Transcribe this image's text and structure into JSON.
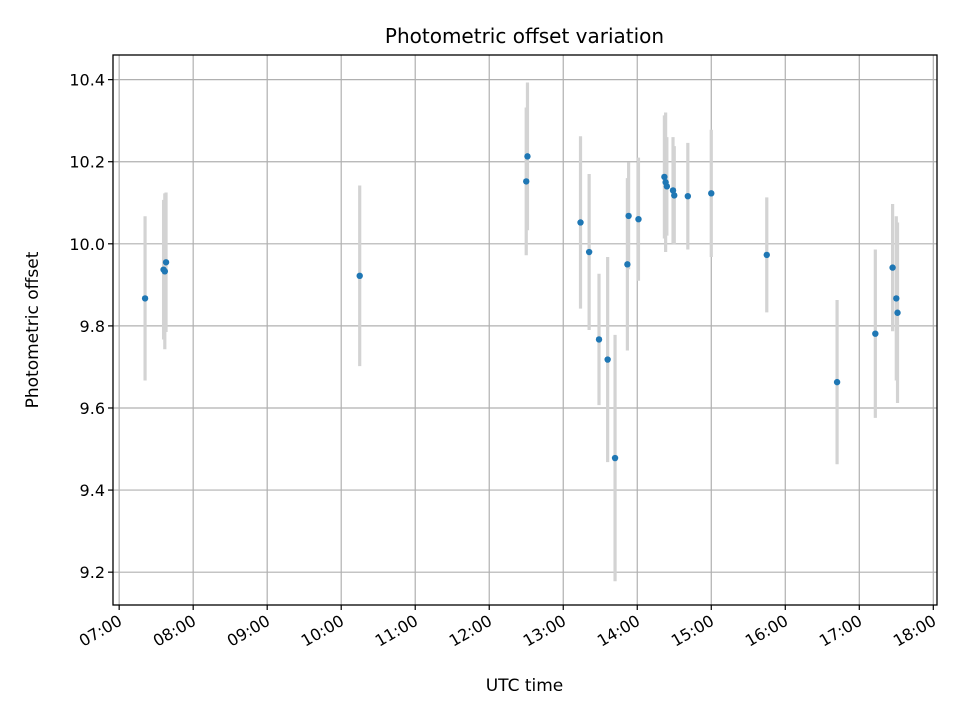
{
  "chart_data": {
    "type": "scatter",
    "title": "Photometric offset variation",
    "xlabel": "UTC time",
    "ylabel": "Photometric offset",
    "x_ticks": [
      "07:00",
      "08:00",
      "09:00",
      "10:00",
      "11:00",
      "12:00",
      "13:00",
      "14:00",
      "15:00",
      "16:00",
      "17:00",
      "18:00"
    ],
    "y_ticks": [
      "9.2",
      "9.4",
      "9.6",
      "9.8",
      "10.0",
      "10.2",
      "10.4"
    ],
    "xlim": [
      "06:55",
      "18:03"
    ],
    "ylim": [
      9.12,
      10.46
    ],
    "grid": true,
    "colors": {
      "point": "#1f77b4",
      "errorbar": "#d3d3d3",
      "grid": "#b0b0b0"
    },
    "points": [
      {
        "x": "07:21",
        "y": 9.867,
        "err": 0.2
      },
      {
        "x": "07:36",
        "y": 9.937,
        "err": 0.17
      },
      {
        "x": "07:37",
        "y": 9.933,
        "err": 0.19
      },
      {
        "x": "07:38",
        "y": 9.955,
        "err": 0.17
      },
      {
        "x": "10:15",
        "y": 9.922,
        "err": 0.22
      },
      {
        "x": "12:30",
        "y": 10.152,
        "err": 0.18
      },
      {
        "x": "12:31",
        "y": 10.213,
        "err": 0.18
      },
      {
        "x": "13:14",
        "y": 10.052,
        "err": 0.21
      },
      {
        "x": "13:21",
        "y": 9.98,
        "err": 0.19
      },
      {
        "x": "13:29",
        "y": 9.767,
        "err": 0.16
      },
      {
        "x": "13:36",
        "y": 9.718,
        "err": 0.25
      },
      {
        "x": "13:42",
        "y": 9.478,
        "err": 0.3
      },
      {
        "x": "13:52",
        "y": 9.95,
        "err": 0.21
      },
      {
        "x": "13:53",
        "y": 10.068,
        "err": 0.13
      },
      {
        "x": "14:01",
        "y": 10.06,
        "err": 0.15
      },
      {
        "x": "14:22",
        "y": 10.163,
        "err": 0.15
      },
      {
        "x": "14:23",
        "y": 10.15,
        "err": 0.17
      },
      {
        "x": "14:24",
        "y": 10.14,
        "err": 0.12
      },
      {
        "x": "14:29",
        "y": 10.13,
        "err": 0.13
      },
      {
        "x": "14:30",
        "y": 10.118,
        "err": 0.12
      },
      {
        "x": "14:41",
        "y": 10.116,
        "err": 0.13
      },
      {
        "x": "15:00",
        "y": 10.123,
        "err": 0.155
      },
      {
        "x": "15:45",
        "y": 9.973,
        "err": 0.14
      },
      {
        "x": "16:42",
        "y": 9.663,
        "err": 0.2
      },
      {
        "x": "17:13",
        "y": 9.781,
        "err": 0.205
      },
      {
        "x": "17:27",
        "y": 9.942,
        "err": 0.155
      },
      {
        "x": "17:30",
        "y": 9.867,
        "err": 0.2
      },
      {
        "x": "17:31",
        "y": 9.832,
        "err": 0.22
      }
    ]
  }
}
